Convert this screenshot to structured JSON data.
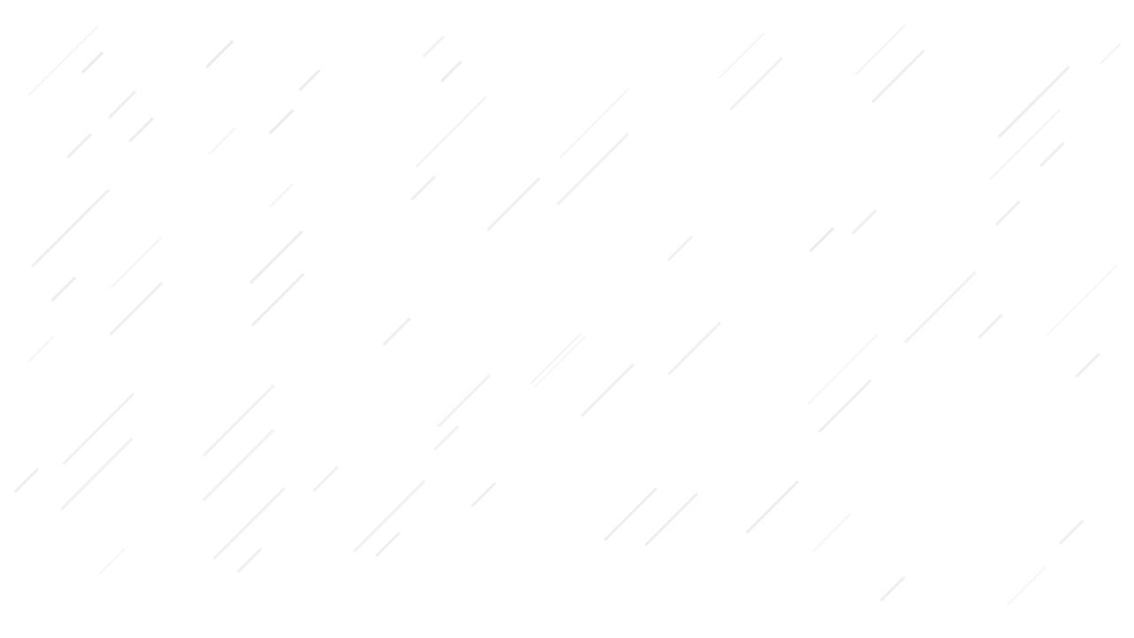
{
  "background": {
    "color": "#ffffff",
    "pattern": "diagonal-rain-streaks",
    "streak_color": "#d9d9d9"
  }
}
